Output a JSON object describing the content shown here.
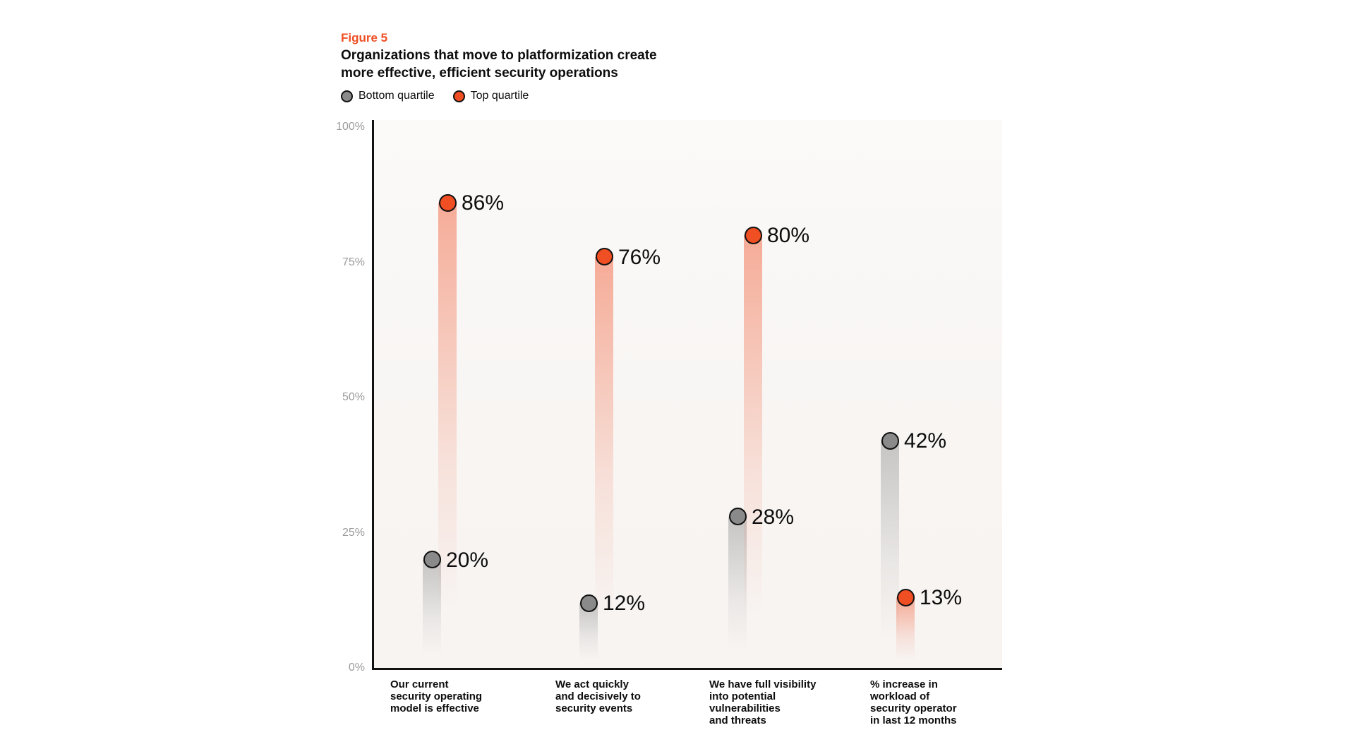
{
  "header": {
    "figure_label": "Figure 5",
    "title_line1": "Organizations that move to platformization create",
    "title_line2": "more effective, efficient security operations"
  },
  "legend": {
    "items": [
      {
        "label": "Bottom quartile",
        "color": "#8a8a8a"
      },
      {
        "label": "Top quartile",
        "color": "#F04E23"
      }
    ]
  },
  "colors": {
    "accent_orange": "#F04E23",
    "dot_gray": "#8a8a8a",
    "axis_black": "#111111",
    "tick_gray": "#9b9b9b",
    "plot_background": "#f8f5f3"
  },
  "chart_data": {
    "type": "scatter",
    "title": "Organizations that move to platformization create more effective, efficient security operations",
    "xlabel": "",
    "ylabel": "",
    "ylim": [
      0,
      100
    ],
    "grid": false,
    "legend_position": "top-left",
    "yticks": [
      {
        "label": "100%",
        "value": 100
      },
      {
        "label": "75%",
        "value": 75
      },
      {
        "label": "50%",
        "value": 50
      },
      {
        "label": "25%",
        "value": 25
      },
      {
        "label": "0%",
        "value": 0
      }
    ],
    "categories": [
      {
        "lines": [
          "Our current",
          "security operating",
          "model is effective"
        ]
      },
      {
        "lines": [
          "We act quickly",
          "and decisively to",
          "security events"
        ]
      },
      {
        "lines": [
          "We have full visibility",
          "into potential",
          "vulnerabilities",
          "and threats"
        ]
      },
      {
        "lines": [
          "% increase in",
          "workload of",
          "security operator",
          "in last 12 months"
        ]
      }
    ],
    "series": [
      {
        "name": "Bottom quartile",
        "color": "#8a8a8a",
        "values": [
          20,
          12,
          28,
          42
        ],
        "labels": [
          "20%",
          "12%",
          "28%",
          "42%"
        ]
      },
      {
        "name": "Top quartile",
        "color": "#F04E23",
        "values": [
          86,
          76,
          80,
          13
        ],
        "labels": [
          "86%",
          "76%",
          "80%",
          "13%"
        ]
      }
    ]
  }
}
